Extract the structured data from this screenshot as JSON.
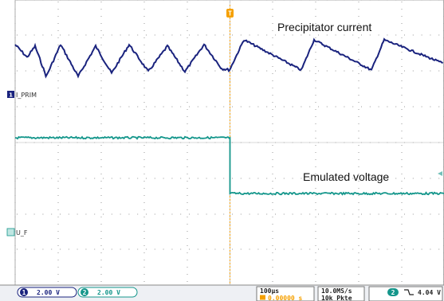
{
  "annotations": {
    "top": "Precipitator current",
    "bottom": "Emulated voltage"
  },
  "channels": [
    {
      "number": "1",
      "name": "I_PRIM",
      "scale": "2.00 V",
      "color": "#1a237e"
    },
    {
      "number": "2",
      "name": "U_F",
      "scale": "2.00 V",
      "color": "#14968b"
    }
  ],
  "trigger": {
    "marker": "T",
    "channel": "2",
    "slope_icon": "falling-edge-icon",
    "level": "4.04 V"
  },
  "timebase": {
    "div": "100µs",
    "position_label": "0.00000 s"
  },
  "acquisition": {
    "sample_rate": "10.0MS/s",
    "record_length": "10k Pkte"
  },
  "colors": {
    "grid": "#9a9a9a",
    "ch1": "#1a237e",
    "ch2": "#14968b",
    "trigger": "#f5a000",
    "status_bg": "#eef0f4"
  }
}
